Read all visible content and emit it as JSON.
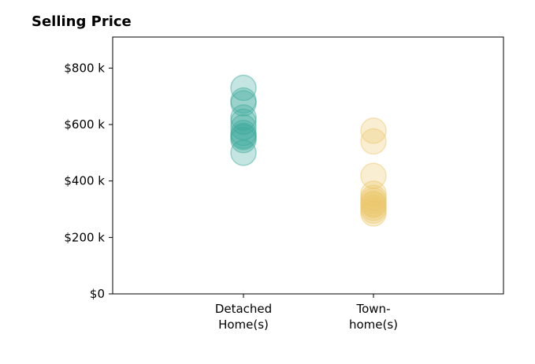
{
  "chart_data": {
    "type": "scatter",
    "title": "Selling Price",
    "xlabel": "",
    "ylabel": "",
    "ylim": [
      0,
      910
    ],
    "xlim": [
      0,
      3
    ],
    "y_ticks": [
      0,
      200,
      400,
      600,
      800
    ],
    "y_tick_labels": [
      "$0",
      "$200 k",
      "$400 k",
      "$600 k",
      "$800 k"
    ],
    "categories": [
      {
        "lines": [
          "Detached",
          "Home(s)"
        ]
      },
      {
        "lines": [
          "Town-",
          "home(s)"
        ]
      }
    ],
    "grid": false,
    "series": [
      {
        "category_index": 0,
        "color": "#3aa89b",
        "values": [
          730,
          685,
          675,
          625,
          610,
          590,
          570,
          560,
          555,
          545,
          500
        ]
      },
      {
        "category_index": 1,
        "color": "#ecc86a",
        "values": [
          578,
          540,
          418,
          355,
          340,
          330,
          320,
          315,
          305,
          295,
          285
        ]
      }
    ]
  }
}
